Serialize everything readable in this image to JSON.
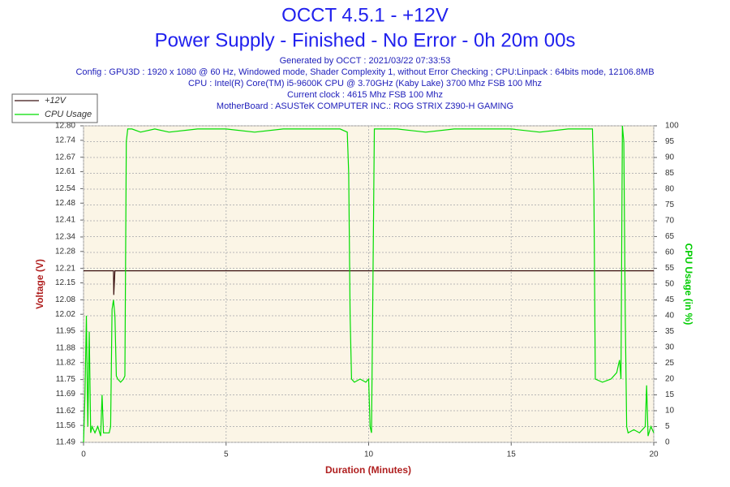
{
  "chart_data": {
    "type": "line",
    "title": "OCCT 4.5.1 - +12V",
    "subtitle": "Power Supply - Finished - No Error - 0h 20m 00s",
    "info": [
      "Generated by OCCT : 2021/03/22 07:33:53",
      "Config : GPU3D : 1920 x 1080 @ 60 Hz, Windowed mode, Shader Complexity 1, without Error Checking ; CPU:Linpack : 64bits mode, 12106.8MB",
      "CPU : Intel(R) Core(TM) i5-9600K CPU @ 3.70GHz (Kaby Lake) 3700 Mhz FSB 100 Mhz",
      "Current clock : 4615 Mhz FSB 100 Mhz",
      "MotherBoard : ASUSTeK COMPUTER INC.: ROG STRIX Z390-H GAMING"
    ],
    "xlabel": "Duration (Minutes)",
    "ylabel": "Voltage (V)",
    "y2label": "CPU Usage (in %)",
    "xlim": [
      0,
      20
    ],
    "xticks": [
      0,
      5,
      10,
      15,
      20
    ],
    "ylim": [
      11.49,
      12.8
    ],
    "yticks": [
      11.49,
      11.56,
      11.62,
      11.69,
      11.75,
      11.82,
      11.88,
      11.95,
      12.02,
      12.08,
      12.15,
      12.21,
      12.28,
      12.34,
      12.41,
      12.48,
      12.54,
      12.61,
      12.67,
      12.74,
      {
        "value": 12.8,
        "label": "12.80"
      }
    ],
    "y2lim": [
      0,
      100
    ],
    "y2ticks": [
      0,
      5,
      10,
      15,
      20,
      25,
      30,
      35,
      40,
      45,
      50,
      55,
      60,
      65,
      70,
      75,
      80,
      85,
      90,
      95,
      100
    ],
    "grid": true,
    "legend": "top-left",
    "series": [
      {
        "name": "+12V",
        "color": "#3a1010",
        "x": [
          0,
          1.05,
          1.06,
          1.1,
          20
        ],
        "values": [
          12.2,
          12.2,
          12.1,
          12.2,
          12.2
        ]
      },
      {
        "name": "CPU Usage",
        "color": "#00dd00",
        "axis": "y2",
        "x": [
          0,
          0.05,
          0.1,
          0.15,
          0.2,
          0.25,
          0.3,
          0.4,
          0.5,
          0.6,
          0.65,
          0.7,
          0.9,
          0.95,
          1.0,
          1.05,
          1.1,
          1.15,
          1.2,
          1.3,
          1.4,
          1.45,
          1.5,
          1.55,
          1.7,
          2.0,
          2.5,
          3,
          4,
          5,
          6,
          7,
          8,
          9,
          9.25,
          9.3,
          9.35,
          9.4,
          9.5,
          9.7,
          9.9,
          10.0,
          10.05,
          10.1,
          10.15,
          10.2,
          11,
          12,
          13,
          14,
          15,
          16,
          17,
          17.85,
          17.9,
          17.95,
          18.2,
          18.5,
          18.7,
          18.8,
          18.85,
          18.9,
          18.95,
          19.0,
          19.05,
          19.1,
          19.3,
          19.5,
          19.7,
          19.75,
          19.8,
          19.9,
          20
        ],
        "values": [
          0,
          15,
          40,
          5,
          35,
          3,
          5,
          3,
          5,
          2,
          15,
          3,
          3,
          5,
          42,
          45,
          40,
          21,
          20,
          19,
          20,
          21,
          95,
          99,
          99,
          98,
          99,
          98,
          99,
          99,
          98,
          99,
          99,
          99,
          98,
          85,
          40,
          20,
          19,
          20,
          19,
          20,
          5,
          3,
          50,
          99,
          99,
          98,
          99,
          99,
          99,
          98,
          99,
          99,
          80,
          20,
          19,
          20,
          22,
          26,
          20,
          100,
          95,
          40,
          5,
          3,
          4,
          3,
          5,
          18,
          2,
          5,
          3
        ]
      }
    ]
  }
}
